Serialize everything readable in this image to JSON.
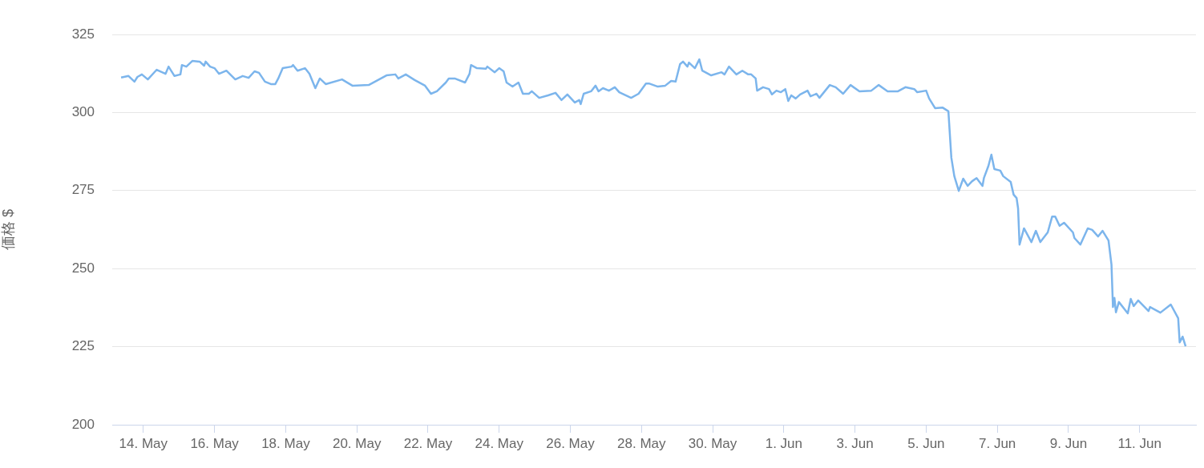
{
  "chart_data": {
    "type": "line",
    "ylabel": "価格 $",
    "x": [
      "--05-13T09:00",
      "--05-13T14:00",
      "--05-13T18:00",
      "--05-13T20:00",
      "--05-13T23:00",
      "--05-14T03:00",
      "--05-14T09:00",
      "--05-14T15:00",
      "--05-14T17:00",
      "--05-14T21:00",
      "--05-15T01:00",
      "--05-15T02:00",
      "--05-15T05:00",
      "--05-15T09:00",
      "--05-15T14:00",
      "--05-15T17:00",
      "--05-15T18:00",
      "--05-15T21:00",
      "--05-16T00:00",
      "--05-16T03:00",
      "--05-16T08:00",
      "--05-16T14:00",
      "--05-16T19:00",
      "--05-16T23:00",
      "--05-17T03:00",
      "--05-17T06:00",
      "--05-17T10:00",
      "--05-17T14:00",
      "--05-17T17:00",
      "--05-17T19:00",
      "--05-17T22:00",
      "--05-18T04:00",
      "--05-18T05:00",
      "--05-18T08:00",
      "--05-18T13:00",
      "--05-18T16:00",
      "--05-18T20:00",
      "--05-18T23:00",
      "--05-19T03:00",
      "--05-19T14:00",
      "--05-19T21:00",
      "--05-20T08:00",
      "--05-20T20:00",
      "--05-21T02:00",
      "--05-21T04:00",
      "--05-21T09:00",
      "--05-21T15:00",
      "--05-21T22:00",
      "--05-22T02:00",
      "--05-22T06:00",
      "--05-22T12:00",
      "--05-22T14:00",
      "--05-22T18:00",
      "--05-23T01:00",
      "--05-23T04:00",
      "--05-23T05:00",
      "--05-23T09:00",
      "--05-23T15:00",
      "--05-23T16:00",
      "--05-23T21:00",
      "--05-24T00:00",
      "--05-24T03:00",
      "--05-24T05:00",
      "--05-24T09:00",
      "--05-24T13:00",
      "--05-24T16:00",
      "--05-24T20:00",
      "--05-24T22:00",
      "--05-25T03:00",
      "--05-25T09:00",
      "--05-25T14:00",
      "--05-25T18:00",
      "--05-25T22:00",
      "--05-26T03:00",
      "--05-26T06:00",
      "--05-26T07:00",
      "--05-26T09:00",
      "--05-26T14:00",
      "--05-26T17:00",
      "--05-26T19:00",
      "--05-26T22:00",
      "--05-27T02:00",
      "--05-27T06:00",
      "--05-27T09:00",
      "--05-27T17:00",
      "--05-27T22:00",
      "--05-28T03:00",
      "--05-28T05:00",
      "--05-28T11:00",
      "--05-28T16:00",
      "--05-28T20:00",
      "--05-28T23:00",
      "--05-29T02:00",
      "--05-29T04:00",
      "--05-29T07:00",
      "--05-29T08:00",
      "--05-29T12:00",
      "--05-29T15:00",
      "--05-29T17:00",
      "--05-29T23:00",
      "--05-30T06:00",
      "--05-30T08:00",
      "--05-30T11:00",
      "--05-30T16:00",
      "--05-30T20:00",
      "--05-31T00:00",
      "--05-31T02:00",
      "--05-31T05:00",
      "--05-31T06:00",
      "--05-31T10:00",
      "--05-31T14:00",
      "--05-31T16:00",
      "--05-31T19:00",
      "--05-31T22:00",
      "--06-01T01:00",
      "--06-01T03:00",
      "--06-01T05:00",
      "--06-01T08:00",
      "--06-01T11:00",
      "--06-01T16:00",
      "--06-01T18:00",
      "--06-01T22:00",
      "--06-02T00:00",
      "--06-02T07:00",
      "--06-02T11:00",
      "--06-02T16:00",
      "--06-02T21:00",
      "--06-03T03:00",
      "--06-03T11:00",
      "--06-03T16:00",
      "--06-03T22:00",
      "--06-04T05:00",
      "--06-04T10:00",
      "--06-04T16:00",
      "--06-04T18:00",
      "--06-05T00:00",
      "--06-05T02:00",
      "--06-05T06:00",
      "--06-05T11:00",
      "--06-05T15:00",
      "--06-05T17:00",
      "--06-05T19:00",
      "--06-05T22:00",
      "--06-06T01:00",
      "--06-06T04:00",
      "--06-06T07:00",
      "--06-06T10:00",
      "--06-06T14:00",
      "--06-06T15:00",
      "--06-06T18:00",
      "--06-06T20:00",
      "--06-06T22:00",
      "--06-07T02:00",
      "--06-07T04:00",
      "--06-07T09:00",
      "--06-07T11:00",
      "--06-07T13:00",
      "--06-07T14:00",
      "--06-07T15:00",
      "--06-07T18:00",
      "--06-07T23:00",
      "--06-08T02:00",
      "--06-08T05:00",
      "--06-08T10:00",
      "--06-08T13:00",
      "--06-08T15:00",
      "--06-08T18:00",
      "--06-08T21:00",
      "--06-09T03:00",
      "--06-09T04:00",
      "--06-09T08:00",
      "--06-09T13:00",
      "--06-09T16:00",
      "--06-09T20:00",
      "--06-09T23:00",
      "--06-10T03:00",
      "--06-10T05:00",
      "--06-10T06:00",
      "--06-10T07:00",
      "--06-10T08:00",
      "--06-10T10:00",
      "--06-10T16:00",
      "--06-10T18:00",
      "--06-10T20:00",
      "--06-10T23:00",
      "--06-11T06:00",
      "--06-11T07:00",
      "--06-11T14:00",
      "--06-11T21:00",
      "--06-12T02:00",
      "--06-12T03:00",
      "--06-12T05:00",
      "--06-12T07:00"
    ],
    "series": [
      {
        "color": "#7cb5ec",
        "values": [
          311.2,
          311.7,
          309.9,
          311.4,
          312.2,
          310.6,
          313.7,
          312.4,
          314.7,
          311.7,
          312.2,
          315.2,
          314.7,
          316.5,
          316.3,
          315.0,
          316.3,
          314.7,
          314.2,
          312.4,
          313.4,
          310.6,
          311.7,
          311.1,
          313.2,
          312.7,
          309.9,
          309.1,
          309.1,
          310.9,
          314.2,
          314.7,
          315.2,
          313.4,
          314.2,
          312.4,
          307.8,
          310.9,
          309.1,
          310.6,
          308.6,
          308.8,
          311.9,
          312.2,
          310.9,
          312.2,
          310.4,
          308.6,
          306.0,
          306.8,
          309.6,
          310.9,
          310.9,
          309.6,
          312.4,
          315.2,
          314.2,
          314.0,
          314.7,
          312.9,
          314.2,
          313.2,
          309.6,
          308.3,
          309.6,
          306.0,
          306.0,
          306.8,
          304.7,
          305.5,
          306.3,
          304.0,
          305.8,
          303.2,
          304.0,
          302.7,
          306.0,
          306.8,
          308.6,
          306.8,
          307.8,
          307.0,
          308.1,
          306.5,
          304.7,
          306.0,
          309.3,
          309.3,
          308.3,
          308.6,
          310.1,
          309.9,
          315.5,
          316.3,
          314.7,
          316.0,
          314.2,
          317.0,
          313.4,
          311.9,
          312.9,
          312.2,
          314.7,
          312.2,
          313.4,
          312.2,
          312.2,
          310.9,
          307.0,
          308.1,
          307.5,
          305.8,
          307.0,
          306.5,
          307.5,
          303.7,
          305.5,
          304.5,
          305.8,
          307.0,
          305.2,
          306.0,
          304.7,
          308.8,
          308.1,
          306.0,
          308.8,
          306.8,
          307.0,
          308.8,
          306.8,
          306.8,
          308.1,
          307.5,
          306.5,
          307.0,
          304.5,
          301.4,
          301.6,
          300.4,
          285.5,
          279.6,
          274.9,
          278.8,
          276.5,
          278.0,
          279.0,
          276.5,
          279.1,
          282.9,
          286.5,
          281.9,
          281.4,
          279.6,
          277.8,
          273.7,
          272.6,
          269.3,
          257.7,
          262.9,
          258.5,
          262.1,
          258.5,
          261.6,
          266.7,
          266.7,
          263.7,
          264.7,
          261.6,
          259.8,
          257.7,
          262.9,
          262.4,
          260.3,
          262.1,
          259.0,
          251.3,
          237.7,
          240.6,
          236.0,
          239.3,
          235.7,
          240.3,
          238.0,
          239.8,
          236.4,
          237.7,
          235.9,
          238.5,
          234.1,
          226.4,
          228.2,
          225.1
        ]
      }
    ],
    "xlim": [
      "--05-13T03:00",
      "--06-12T14:00"
    ],
    "xticks": [
      {
        "value": "--05-14",
        "label": "14. May"
      },
      {
        "value": "--05-16",
        "label": "16. May"
      },
      {
        "value": "--05-18",
        "label": "18. May"
      },
      {
        "value": "--05-20",
        "label": "20. May"
      },
      {
        "value": "--05-22",
        "label": "22. May"
      },
      {
        "value": "--05-24",
        "label": "24. May"
      },
      {
        "value": "--05-26",
        "label": "26. May"
      },
      {
        "value": "--05-28",
        "label": "28. May"
      },
      {
        "value": "--05-30",
        "label": "30. May"
      },
      {
        "value": "--06-01",
        "label": "1. Jun"
      },
      {
        "value": "--06-03",
        "label": "3. Jun"
      },
      {
        "value": "--06-05",
        "label": "5. Jun"
      },
      {
        "value": "--06-07",
        "label": "7. Jun"
      },
      {
        "value": "--06-09",
        "label": "9. Jun"
      },
      {
        "value": "--06-11",
        "label": "11. Jun"
      }
    ],
    "ylim": [
      200,
      325
    ],
    "yticks": [
      200,
      225,
      250,
      275,
      300,
      325
    ],
    "grid": "y",
    "legend": false
  }
}
